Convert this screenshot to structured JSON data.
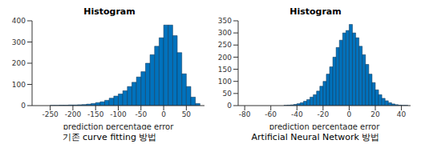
{
  "chart_data": [
    {
      "type": "histogram",
      "title": "Histogram",
      "xlabel": "prediction percentage error",
      "caption": "기존 curve fitting 방법",
      "color": "#0072bd",
      "bins": [
        -260,
        -250,
        -240,
        -230,
        -220,
        -210,
        -200,
        -190,
        -180,
        -170,
        -160,
        -150,
        -140,
        -130,
        -120,
        -110,
        -100,
        -90,
        -80,
        -70,
        -60,
        -50,
        -40,
        -30,
        -20,
        -10,
        0,
        10,
        20,
        30,
        40,
        50,
        60,
        70,
        80
      ],
      "counts": [
        0,
        1,
        1,
        2,
        2,
        3,
        3,
        4,
        5,
        7,
        10,
        14,
        18,
        25,
        35,
        45,
        55,
        70,
        90,
        110,
        135,
        160,
        200,
        240,
        280,
        320,
        380,
        380,
        330,
        250,
        150,
        90,
        40,
        10
      ],
      "xlim": [
        -290,
        90
      ],
      "xticks": [
        -250,
        -200,
        -150,
        -100,
        -50,
        0,
        50
      ],
      "ylim": [
        0,
        400
      ],
      "yticks": [
        0,
        100,
        200,
        300,
        400
      ]
    },
    {
      "type": "histogram",
      "title": "Histogram",
      "xlabel": "prediction percentage error",
      "caption": "Artificial Neural Network 방법",
      "color": "#0072bd",
      "bins": [
        -50,
        -47.5,
        -45,
        -42.5,
        -40,
        -37.5,
        -35,
        -32.5,
        -30,
        -27.5,
        -25,
        -22.5,
        -20,
        -17.5,
        -15,
        -12.5,
        -10,
        -7.5,
        -5,
        -2.5,
        0,
        2.5,
        5,
        7.5,
        10,
        12.5,
        15,
        17.5,
        20,
        22.5,
        25,
        27.5,
        30,
        32.5,
        35,
        37.5,
        40,
        42.5,
        45
      ],
      "counts": [
        1,
        2,
        3,
        5,
        8,
        12,
        18,
        25,
        35,
        45,
        60,
        80,
        100,
        130,
        160,
        200,
        240,
        270,
        300,
        310,
        335,
        300,
        280,
        245,
        210,
        170,
        130,
        95,
        65,
        45,
        30,
        20,
        12,
        7,
        4,
        2,
        1,
        1
      ],
      "xlim": [
        -85,
        47
      ],
      "xticks": [
        -80,
        -60,
        -40,
        -20,
        0,
        20,
        40
      ],
      "ylim": [
        0,
        350
      ],
      "yticks": [
        0,
        50,
        100,
        150,
        200,
        250,
        300,
        350
      ]
    }
  ]
}
